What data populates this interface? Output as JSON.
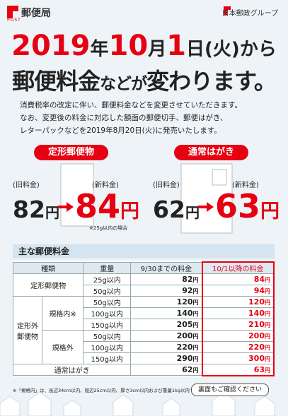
{
  "header": {
    "logo": "郵便局",
    "logo_sub": "POST",
    "group": "日本郵政グループ"
  },
  "headline": {
    "line1": [
      "2019",
      "年",
      "10",
      "月",
      "1",
      "日(火)から"
    ],
    "line2": [
      "郵便料金",
      "などが",
      "変わります。"
    ]
  },
  "intro": [
    "消費税率の改定に伴い、郵便料金などを変更させていただきます。",
    "なお、変更後の料金に対応した額面の郵便切手、郵便はがき、",
    "レターパックなどを2019年8月20日(火)に発売いたします。"
  ],
  "highlights": [
    {
      "label": "定形郵便物",
      "old_label": "(旧料金)",
      "new_label": "(新料金)",
      "old": 82,
      "new": 84,
      "note": "※25g以内の場合"
    },
    {
      "label": "通常はがき",
      "old_label": "(旧料金)",
      "new_label": "(新料金)",
      "old": 62,
      "new": 63
    }
  ],
  "currency": "円",
  "table": {
    "title": "主な郵便料金",
    "headers": [
      "種類",
      "重量",
      "9/30までの料金",
      "10/1以降の料金"
    ],
    "groups": [
      {
        "label": "定形郵便物",
        "rows": [
          {
            "weight": "25g以内",
            "old": 82,
            "new": 84
          },
          {
            "weight": "50g以内",
            "old": 92,
            "new": 94
          }
        ]
      },
      {
        "label": "定形外郵便物",
        "subgroups": [
          {
            "label": "規格内※",
            "rows": [
              {
                "weight": "50g以内",
                "old": 120,
                "new": 120
              },
              {
                "weight": "100g以内",
                "old": 140,
                "new": 140
              },
              {
                "weight": "150g以内",
                "old": 205,
                "new": 210
              }
            ]
          },
          {
            "label": "規格外",
            "rows": [
              {
                "weight": "50g以内",
                "old": 200,
                "new": 200
              },
              {
                "weight": "100g以内",
                "old": 220,
                "new": 220
              },
              {
                "weight": "150g以内",
                "old": 290,
                "new": 300
              }
            ]
          }
        ]
      }
    ],
    "hagaki": {
      "label": "通常はがき",
      "old": 62,
      "new": 63
    }
  },
  "footer": {
    "note": "※「規格内」は、長辺34cm以内、短辺25cm以内、厚さ3cm以内および重量1kg以内です。",
    "button": "裏面もご確認ください"
  }
}
